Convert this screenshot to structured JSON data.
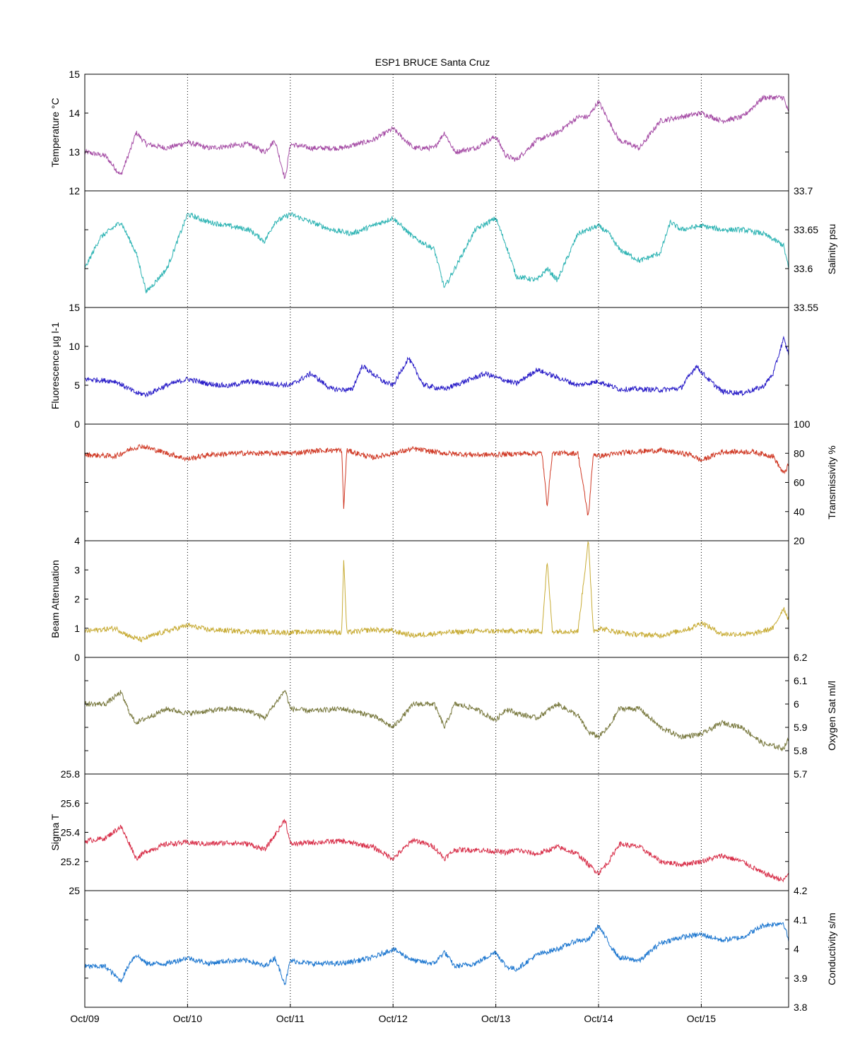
{
  "title": "ESP1 BRUCE Santa Cruz",
  "x_tick_labels": [
    "Oct/09",
    "Oct/10",
    "Oct/11",
    "Oct/12",
    "Oct/13",
    "Oct/14",
    "Oct/15"
  ],
  "chart_data": [
    {
      "type": "line",
      "name": "temperature",
      "ylabel": "Temperature °C",
      "axis_side": "left",
      "ylim": [
        12,
        15
      ],
      "yticks": [
        12,
        13,
        14,
        15
      ],
      "color": "#a64ea6",
      "xlim": [
        0,
        6.85
      ],
      "grid": "vertical dotted at each day",
      "x": [
        0,
        0.2,
        0.35,
        0.45,
        0.5,
        0.6,
        0.8,
        1,
        1.2,
        1.4,
        1.6,
        1.75,
        1.85,
        1.95,
        2.0,
        2.2,
        2.5,
        2.8,
        3.0,
        3.2,
        3.4,
        3.5,
        3.6,
        3.8,
        4.0,
        4.1,
        4.2,
        4.4,
        4.6,
        4.8,
        4.9,
        5.0,
        5.1,
        5.2,
        5.4,
        5.6,
        5.8,
        6.0,
        6.2,
        6.4,
        6.6,
        6.8,
        6.85
      ],
      "values": [
        13.0,
        12.9,
        12.4,
        13.1,
        13.5,
        13.2,
        13.1,
        13.25,
        13.1,
        13.15,
        13.2,
        13.0,
        13.3,
        12.3,
        13.2,
        13.1,
        13.1,
        13.3,
        13.6,
        13.1,
        13.1,
        13.5,
        13.0,
        13.1,
        13.4,
        12.9,
        12.8,
        13.3,
        13.5,
        13.9,
        13.9,
        14.3,
        13.8,
        13.3,
        13.1,
        13.8,
        13.9,
        14.0,
        13.8,
        13.9,
        14.4,
        14.4,
        14.0
      ]
    },
    {
      "type": "line",
      "name": "salinity",
      "ylabel": "Salinity psu",
      "axis_side": "right",
      "ylim": [
        33.55,
        33.7
      ],
      "yticks": [
        33.55,
        33.6,
        33.65,
        33.7
      ],
      "color": "#2fb4b4",
      "xlim": [
        0,
        6.85
      ],
      "x": [
        0,
        0.15,
        0.35,
        0.5,
        0.6,
        0.8,
        1.0,
        1.2,
        1.4,
        1.6,
        1.75,
        1.85,
        2.0,
        2.2,
        2.4,
        2.6,
        2.8,
        3.0,
        3.2,
        3.4,
        3.5,
        3.6,
        3.8,
        4.0,
        4.1,
        4.2,
        4.4,
        4.5,
        4.6,
        4.8,
        5.0,
        5.1,
        5.2,
        5.4,
        5.6,
        5.7,
        5.8,
        6.0,
        6.2,
        6.4,
        6.6,
        6.8,
        6.85
      ],
      "values": [
        33.6,
        33.64,
        33.66,
        33.62,
        33.57,
        33.6,
        33.67,
        33.66,
        33.655,
        33.65,
        33.635,
        33.66,
        33.67,
        33.66,
        33.65,
        33.645,
        33.655,
        33.665,
        33.64,
        33.625,
        33.575,
        33.6,
        33.65,
        33.665,
        33.63,
        33.59,
        33.585,
        33.6,
        33.585,
        33.645,
        33.655,
        33.645,
        33.625,
        33.61,
        33.62,
        33.66,
        33.65,
        33.655,
        33.65,
        33.65,
        33.645,
        33.63,
        33.6
      ]
    },
    {
      "type": "line",
      "name": "fluorescence",
      "ylabel": "Fluorescence µg l-1",
      "axis_side": "left",
      "ylim": [
        0,
        15
      ],
      "yticks": [
        0,
        5,
        10,
        15
      ],
      "color": "#2a1ec8",
      "xlim": [
        0,
        6.85
      ],
      "x": [
        0,
        0.3,
        0.5,
        0.6,
        0.8,
        1.0,
        1.2,
        1.4,
        1.6,
        1.8,
        2.0,
        2.2,
        2.4,
        2.6,
        2.7,
        2.9,
        3.0,
        3.15,
        3.3,
        3.5,
        3.7,
        3.9,
        4.0,
        4.2,
        4.4,
        4.6,
        4.8,
        5.0,
        5.2,
        5.4,
        5.6,
        5.8,
        5.95,
        6.05,
        6.2,
        6.4,
        6.6,
        6.7,
        6.8,
        6.85
      ],
      "values": [
        5.8,
        5.5,
        4.0,
        3.8,
        5.0,
        5.8,
        5.2,
        4.9,
        5.5,
        5.2,
        5.0,
        6.5,
        4.5,
        4.4,
        7.5,
        5.5,
        5.0,
        8.5,
        5.0,
        4.5,
        5.5,
        6.5,
        6.0,
        5.2,
        7.0,
        6.0,
        5.0,
        5.5,
        4.5,
        4.5,
        4.4,
        4.6,
        7.5,
        6.0,
        4.2,
        4.0,
        4.8,
        6.5,
        11.0,
        9.0
      ]
    },
    {
      "type": "line",
      "name": "transmissivity",
      "ylabel": "Transmissivity %",
      "axis_side": "right",
      "ylim": [
        20,
        100
      ],
      "yticks": [
        20,
        40,
        60,
        80,
        100
      ],
      "color": "#d03a26",
      "xlim": [
        0,
        6.85
      ],
      "x": [
        0,
        0.3,
        0.45,
        0.55,
        0.7,
        0.9,
        1.0,
        1.2,
        1.5,
        2.0,
        2.3,
        2.5,
        2.52,
        2.55,
        2.8,
        3.0,
        3.2,
        3.5,
        3.8,
        4.0,
        4.3,
        4.45,
        4.5,
        4.55,
        4.8,
        4.9,
        4.95,
        5.0,
        5.3,
        5.6,
        5.9,
        6.0,
        6.2,
        6.5,
        6.7,
        6.8,
        6.85
      ],
      "values": [
        79,
        78,
        83,
        85,
        82,
        78,
        76,
        79,
        80,
        80,
        82,
        82,
        42,
        82,
        77,
        80,
        83,
        80,
        79,
        79,
        80,
        80,
        44,
        80,
        80,
        36,
        80,
        78,
        81,
        82,
        79,
        75,
        81,
        81,
        78,
        66,
        72
      ]
    },
    {
      "type": "line",
      "name": "beam_attenuation",
      "ylabel": "Beam Attenuation",
      "axis_side": "left",
      "ylim": [
        0,
        4
      ],
      "yticks": [
        0,
        1,
        2,
        3,
        4
      ],
      "color": "#c8ac36",
      "xlim": [
        0,
        6.85
      ],
      "x": [
        0,
        0.3,
        0.45,
        0.55,
        0.7,
        0.9,
        1.0,
        1.2,
        1.5,
        2.0,
        2.3,
        2.5,
        2.52,
        2.55,
        2.8,
        3.0,
        3.2,
        3.5,
        3.8,
        4.0,
        4.3,
        4.45,
        4.5,
        4.55,
        4.8,
        4.9,
        4.95,
        5.0,
        5.3,
        5.6,
        5.9,
        6.0,
        6.2,
        6.5,
        6.7,
        6.8,
        6.85
      ],
      "values": [
        0.9,
        1.0,
        0.7,
        0.6,
        0.8,
        1.0,
        1.1,
        0.95,
        0.9,
        0.85,
        0.9,
        0.85,
        3.4,
        0.85,
        0.95,
        0.9,
        0.75,
        0.85,
        0.9,
        0.9,
        0.9,
        0.9,
        3.3,
        0.9,
        0.9,
        4.0,
        0.9,
        1.0,
        0.8,
        0.75,
        1.0,
        1.2,
        0.8,
        0.8,
        1.0,
        1.7,
        1.3
      ]
    },
    {
      "type": "line",
      "name": "oxygen_sat",
      "ylabel": "Oxygen Sat ml/l",
      "axis_side": "right",
      "ylim": [
        5.7,
        6.2
      ],
      "yticks": [
        5.7,
        5.8,
        5.9,
        6.0,
        6.1,
        6.2
      ],
      "color": "#7a7a40",
      "xlim": [
        0,
        6.85
      ],
      "x": [
        0,
        0.2,
        0.35,
        0.45,
        0.5,
        0.6,
        0.8,
        1.0,
        1.2,
        1.4,
        1.6,
        1.75,
        1.85,
        1.95,
        2.0,
        2.2,
        2.5,
        2.8,
        3.0,
        3.2,
        3.4,
        3.5,
        3.6,
        3.8,
        4.0,
        4.1,
        4.2,
        4.4,
        4.6,
        4.8,
        4.9,
        5.0,
        5.1,
        5.2,
        5.4,
        5.6,
        5.8,
        6.0,
        6.2,
        6.4,
        6.6,
        6.8,
        6.85
      ],
      "values": [
        6.0,
        6.0,
        6.05,
        5.95,
        5.92,
        5.94,
        5.98,
        5.96,
        5.97,
        5.98,
        5.97,
        5.94,
        6.0,
        6.06,
        5.98,
        5.97,
        5.98,
        5.95,
        5.9,
        6.0,
        6.0,
        5.9,
        6.0,
        5.98,
        5.93,
        5.98,
        5.96,
        5.94,
        6.0,
        5.95,
        5.88,
        5.86,
        5.9,
        5.98,
        5.98,
        5.9,
        5.86,
        5.87,
        5.92,
        5.9,
        5.83,
        5.81,
        5.85
      ]
    },
    {
      "type": "line",
      "name": "sigma_t",
      "ylabel": "Sigma T",
      "axis_side": "left",
      "ylim": [
        25,
        25.8
      ],
      "yticks": [
        25,
        25.2,
        25.4,
        25.6,
        25.8
      ],
      "color": "#d8304a",
      "xlim": [
        0,
        6.85
      ],
      "x": [
        0,
        0.2,
        0.35,
        0.45,
        0.5,
        0.6,
        0.8,
        1.0,
        1.2,
        1.4,
        1.6,
        1.75,
        1.85,
        1.95,
        2.0,
        2.2,
        2.5,
        2.8,
        3.0,
        3.2,
        3.4,
        3.5,
        3.6,
        3.8,
        4.0,
        4.1,
        4.2,
        4.4,
        4.6,
        4.8,
        4.9,
        5.0,
        5.1,
        5.2,
        5.4,
        5.6,
        5.8,
        6.0,
        6.2,
        6.4,
        6.6,
        6.8,
        6.85
      ],
      "values": [
        25.34,
        25.36,
        25.44,
        25.3,
        25.22,
        25.27,
        25.32,
        25.33,
        25.32,
        25.33,
        25.32,
        25.28,
        25.38,
        25.49,
        25.32,
        25.33,
        25.34,
        25.3,
        25.22,
        25.35,
        25.3,
        25.22,
        25.28,
        25.28,
        25.27,
        25.26,
        25.28,
        25.25,
        25.3,
        25.25,
        25.18,
        25.12,
        25.2,
        25.32,
        25.3,
        25.2,
        25.18,
        25.2,
        25.24,
        25.2,
        25.12,
        25.07,
        25.12
      ]
    },
    {
      "type": "line",
      "name": "conductivity",
      "ylabel": "Conductivity s/m",
      "axis_side": "right",
      "ylim": [
        3.8,
        4.2
      ],
      "yticks": [
        3.8,
        3.9,
        4.0,
        4.1,
        4.2
      ],
      "color": "#1f78d0",
      "xlim": [
        0,
        6.85
      ],
      "x": [
        0,
        0.2,
        0.35,
        0.45,
        0.5,
        0.6,
        0.8,
        1.0,
        1.2,
        1.4,
        1.6,
        1.75,
        1.85,
        1.95,
        2.0,
        2.2,
        2.5,
        2.8,
        3.0,
        3.2,
        3.4,
        3.5,
        3.6,
        3.8,
        4.0,
        4.1,
        4.2,
        4.4,
        4.6,
        4.8,
        4.9,
        5.0,
        5.1,
        5.2,
        5.4,
        5.6,
        5.8,
        6.0,
        6.2,
        6.4,
        6.6,
        6.8,
        6.85
      ],
      "values": [
        3.94,
        3.94,
        3.89,
        3.96,
        3.98,
        3.95,
        3.95,
        3.97,
        3.95,
        3.96,
        3.96,
        3.94,
        3.97,
        3.88,
        3.96,
        3.95,
        3.95,
        3.97,
        4.0,
        3.96,
        3.95,
        3.99,
        3.94,
        3.95,
        3.99,
        3.94,
        3.93,
        3.98,
        4.0,
        4.03,
        4.03,
        4.08,
        4.02,
        3.97,
        3.96,
        4.02,
        4.04,
        4.05,
        4.03,
        4.04,
        4.08,
        4.09,
        4.03
      ]
    }
  ]
}
